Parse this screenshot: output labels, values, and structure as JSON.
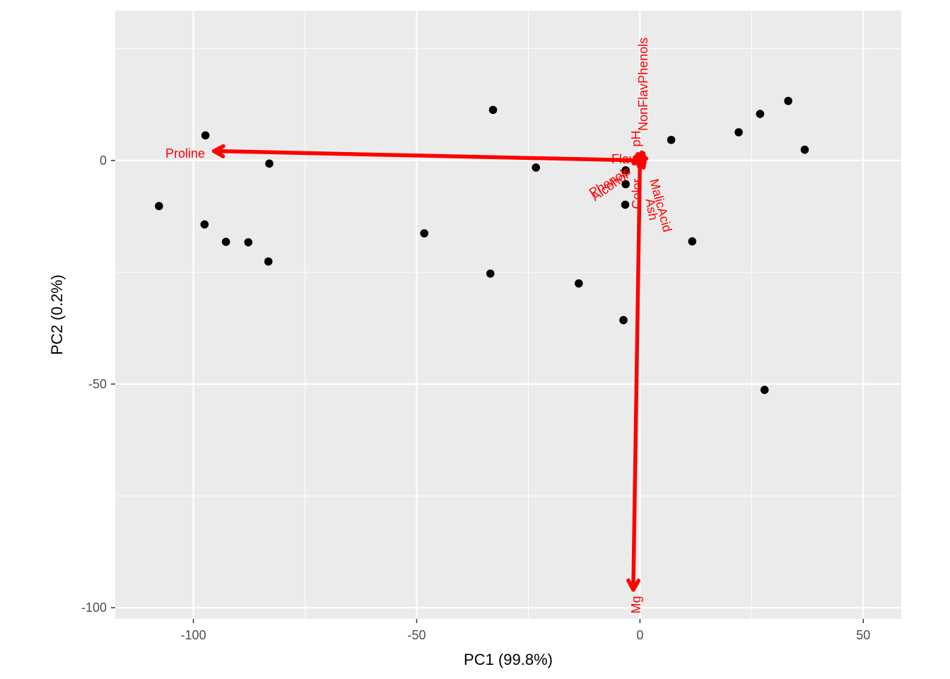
{
  "chart_data": {
    "type": "scatter",
    "title": "",
    "xlabel": "PC1 (99.8%)",
    "ylabel": "PC2 (0.2%)",
    "xlim": [
      -117.5,
      58.5
    ],
    "ylim": [
      -102.5,
      33.5
    ],
    "grid": true,
    "x_ticks": [
      {
        "value": -100,
        "label": "-100"
      },
      {
        "value": -50,
        "label": "-50"
      },
      {
        "value": 0,
        "label": "0"
      },
      {
        "value": 50,
        "label": "50"
      }
    ],
    "y_ticks": [
      {
        "value": 0,
        "label": "0"
      },
      {
        "value": -50,
        "label": "-50"
      },
      {
        "value": -100,
        "label": "-100"
      }
    ],
    "points": [
      {
        "x": -107.7,
        "y": -10.2
      },
      {
        "x": -97.3,
        "y": 5.6
      },
      {
        "x": -97.5,
        "y": -14.3
      },
      {
        "x": -92.7,
        "y": -18.2
      },
      {
        "x": -87.7,
        "y": -18.3
      },
      {
        "x": -83.0,
        "y": -0.7
      },
      {
        "x": -83.2,
        "y": -22.6
      },
      {
        "x": -48.3,
        "y": -16.3
      },
      {
        "x": -32.9,
        "y": 11.3
      },
      {
        "x": -33.5,
        "y": -25.3
      },
      {
        "x": -23.3,
        "y": -1.6
      },
      {
        "x": -13.7,
        "y": -27.5
      },
      {
        "x": -3.7,
        "y": -35.7
      },
      {
        "x": -3.2,
        "y": -2.2
      },
      {
        "x": -3.2,
        "y": -5.3
      },
      {
        "x": -3.3,
        "y": -9.9
      },
      {
        "x": 7.0,
        "y": 4.6
      },
      {
        "x": 11.7,
        "y": -18.1
      },
      {
        "x": 22.1,
        "y": 6.3
      },
      {
        "x": 26.9,
        "y": 10.4
      },
      {
        "x": 27.9,
        "y": -51.3
      },
      {
        "x": 33.2,
        "y": 13.3
      },
      {
        "x": 36.9,
        "y": 2.4
      }
    ],
    "point_color": "#000000",
    "arrow_color": "#ff0000",
    "arrows": [
      {
        "label": "Proline",
        "x": -95.4,
        "y": 2.1
      },
      {
        "label": "Mg",
        "x": -1.5,
        "y": -96.0
      },
      {
        "label": "NonFlavPhenols",
        "x": 0.4,
        "y": 1.8
      },
      {
        "label": "pH",
        "x": 0.8,
        "y": 1.6
      },
      {
        "label": "Flav",
        "x": 1.2,
        "y": 0.6
      },
      {
        "label": "Alcohol",
        "x": 1.0,
        "y": -0.4
      },
      {
        "label": "Phenols",
        "x": 1.4,
        "y": 0.4
      },
      {
        "label": "Color",
        "x": 0.9,
        "y": -1.2
      },
      {
        "label": "MalicAcid",
        "x": 0.8,
        "y": -1.6
      },
      {
        "label": "Ash",
        "x": 0.6,
        "y": -1.4
      }
    ]
  }
}
